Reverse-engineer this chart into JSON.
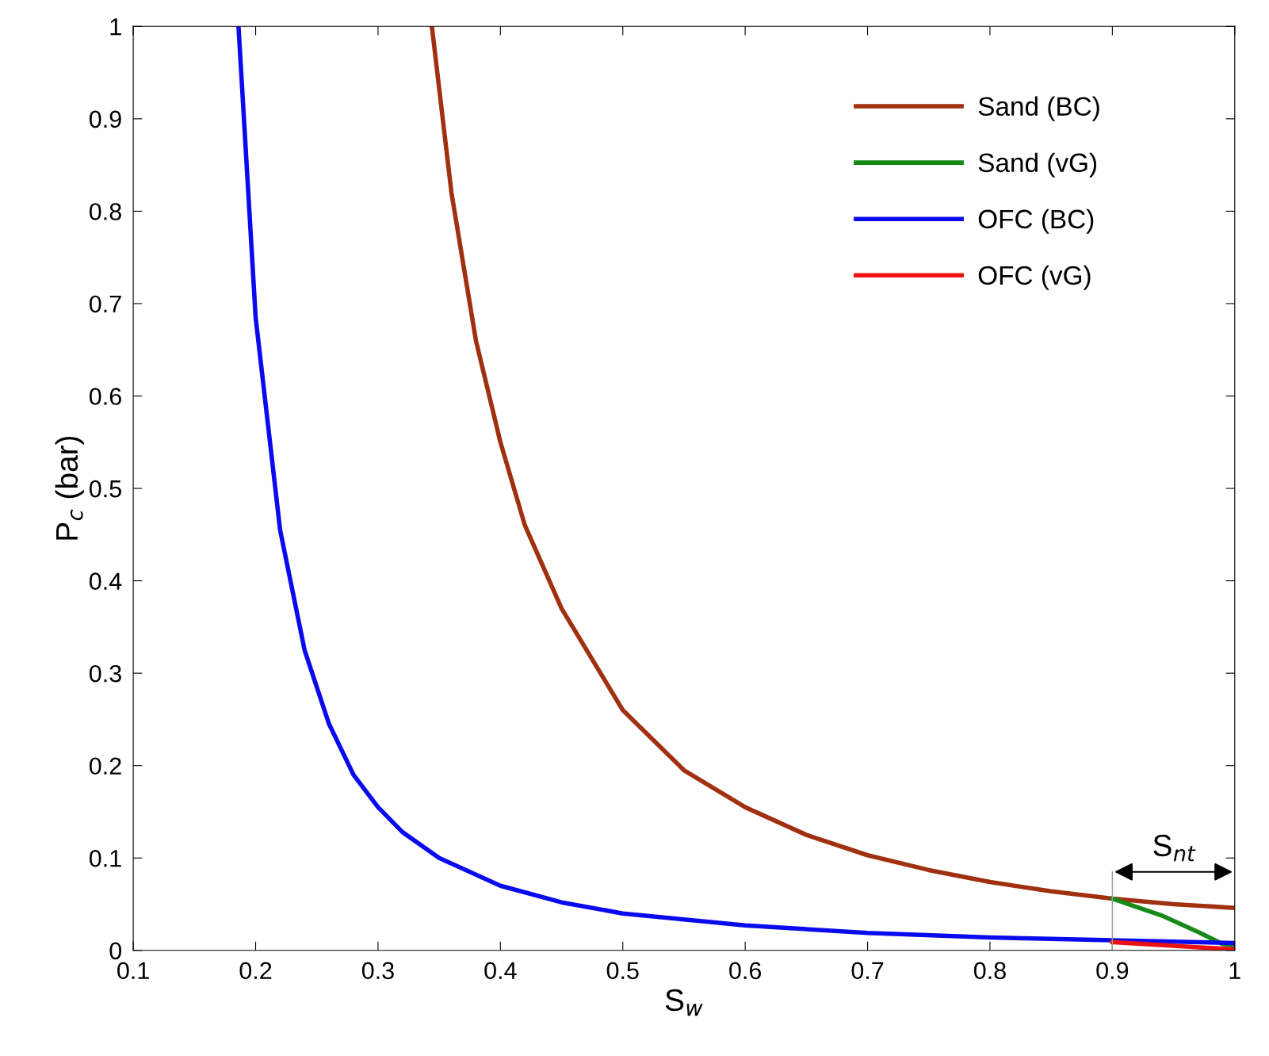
{
  "chart_data": {
    "type": "line",
    "xlabel": "S$_{w}$",
    "ylabel": "P$_{c}$ (bar)",
    "xlim": [
      0.1,
      1
    ],
    "ylim": [
      0,
      1
    ],
    "xticks": [
      0.1,
      0.2,
      0.3,
      0.4,
      0.5,
      0.6,
      0.7,
      0.8,
      0.9,
      1
    ],
    "yticks": [
      0,
      0.1,
      0.2,
      0.3,
      0.4,
      0.5,
      0.6,
      0.7,
      0.8,
      0.9,
      1
    ],
    "grid": false,
    "legend": "top right",
    "line_style": "solid",
    "marker": "none",
    "series": [
      {
        "name": "Sand (BC)",
        "color": "#a0300f",
        "x": [
          0.344,
          0.36,
          0.38,
          0.4,
          0.42,
          0.45,
          0.5,
          0.55,
          0.6,
          0.65,
          0.7,
          0.75,
          0.8,
          0.85,
          0.9,
          0.95,
          1.0
        ],
        "values": [
          1,
          0.82,
          0.66,
          0.55,
          0.46,
          0.37,
          0.26,
          0.195,
          0.155,
          0.125,
          0.103,
          0.087,
          0.074,
          0.064,
          0.056,
          0.05,
          0.046
        ]
      },
      {
        "name": "Sand (vG)",
        "color": "#178a17",
        "x": [
          0.9,
          0.94,
          0.97,
          0.99,
          1.0
        ],
        "values": [
          0.056,
          0.038,
          0.02,
          0.007,
          0.005
        ]
      },
      {
        "name": "OFC (BC)",
        "color": "#0a0aee",
        "x": [
          0.186,
          0.2,
          0.22,
          0.24,
          0.26,
          0.28,
          0.3,
          0.32,
          0.35,
          0.4,
          0.45,
          0.5,
          0.6,
          0.7,
          0.8,
          0.9,
          1.0
        ],
        "values": [
          1,
          0.685,
          0.455,
          0.325,
          0.245,
          0.19,
          0.155,
          0.128,
          0.1,
          0.07,
          0.052,
          0.04,
          0.027,
          0.019,
          0.014,
          0.011,
          0.008
        ]
      },
      {
        "name": "OFC (vG)",
        "color": "#ee1111",
        "x": [
          0.9,
          0.95,
          1.0
        ],
        "values": [
          0.009,
          0.005,
          0.001
        ]
      }
    ],
    "ref_lines": [
      {
        "axis": "x",
        "value": 0.9,
        "color": "#999999"
      }
    ],
    "annotations": [
      "S$_{nt}$"
    ]
  }
}
